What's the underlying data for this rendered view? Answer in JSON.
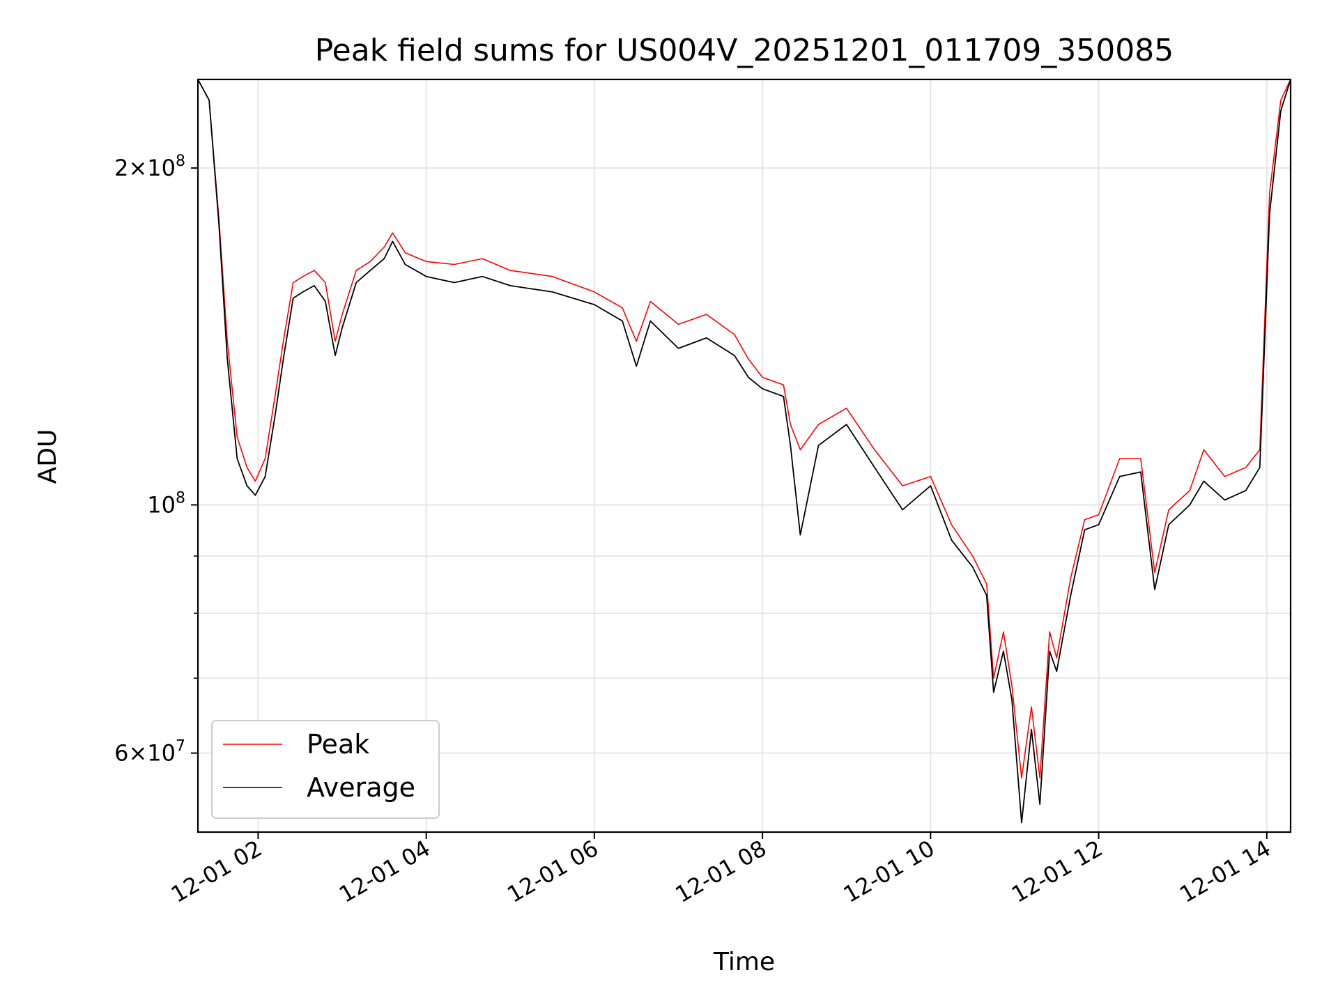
{
  "chart_data": {
    "type": "line",
    "title": "Peak field sums for US004V_20251201_011709_350085",
    "xlabel": "Time",
    "ylabel": "ADU",
    "y_scale": "log",
    "xlim": [
      "2025-12-01 01:17",
      "2025-12-01 14:17"
    ],
    "ylim": [
      51000000,
      240000000
    ],
    "grid": true,
    "legend_position": "lower-left",
    "x_ticks": [
      {
        "label": "12-01 02",
        "value": "2025-12-01 02:00"
      },
      {
        "label": "12-01 04",
        "value": "2025-12-01 04:00"
      },
      {
        "label": "12-01 06",
        "value": "2025-12-01 06:00"
      },
      {
        "label": "12-01 08",
        "value": "2025-12-01 08:00"
      },
      {
        "label": "12-01 10",
        "value": "2025-12-01 10:00"
      },
      {
        "label": "12-01 12",
        "value": "2025-12-01 12:00"
      },
      {
        "label": "12-01 14",
        "value": "2025-12-01 14:00"
      }
    ],
    "y_major_ticks": [
      {
        "label_base": "2×10",
        "label_exp": "8",
        "value": 200000000
      },
      {
        "label_base": "10",
        "label_exp": "8",
        "value": 100000000
      },
      {
        "label_base": "6×10",
        "label_exp": "7",
        "value": 60000000
      }
    ],
    "y_minor_ticks": [
      70000000,
      80000000,
      90000000
    ],
    "x": [
      "2025-12-01 01:17",
      "2025-12-01 01:25",
      "2025-12-01 01:32",
      "2025-12-01 01:38",
      "2025-12-01 01:45",
      "2025-12-01 01:52",
      "2025-12-01 01:58",
      "2025-12-01 02:05",
      "2025-12-01 02:12",
      "2025-12-01 02:18",
      "2025-12-01 02:25",
      "2025-12-01 02:32",
      "2025-12-01 02:40",
      "2025-12-01 02:48",
      "2025-12-01 02:55",
      "2025-12-01 03:00",
      "2025-12-01 03:10",
      "2025-12-01 03:20",
      "2025-12-01 03:30",
      "2025-12-01 03:36",
      "2025-12-01 03:45",
      "2025-12-01 04:00",
      "2025-12-01 04:20",
      "2025-12-01 04:40",
      "2025-12-01 05:00",
      "2025-12-01 05:30",
      "2025-12-01 06:00",
      "2025-12-01 06:20",
      "2025-12-01 06:30",
      "2025-12-01 06:40",
      "2025-12-01 07:00",
      "2025-12-01 07:20",
      "2025-12-01 07:40",
      "2025-12-01 07:50",
      "2025-12-01 08:00",
      "2025-12-01 08:15",
      "2025-12-01 08:20",
      "2025-12-01 08:27",
      "2025-12-01 08:40",
      "2025-12-01 09:00",
      "2025-12-01 09:20",
      "2025-12-01 09:40",
      "2025-12-01 10:00",
      "2025-12-01 10:15",
      "2025-12-01 10:30",
      "2025-12-01 10:40",
      "2025-12-01 10:45",
      "2025-12-01 10:52",
      "2025-12-01 10:58",
      "2025-12-01 11:05",
      "2025-12-01 11:12",
      "2025-12-01 11:18",
      "2025-12-01 11:25",
      "2025-12-01 11:30",
      "2025-12-01 11:40",
      "2025-12-01 11:50",
      "2025-12-01 12:00",
      "2025-12-01 12:15",
      "2025-12-01 12:30",
      "2025-12-01 12:40",
      "2025-12-01 12:50",
      "2025-12-01 13:05",
      "2025-12-01 13:15",
      "2025-12-01 13:30",
      "2025-12-01 13:45",
      "2025-12-01 13:55",
      "2025-12-01 14:02",
      "2025-12-01 14:10",
      "2025-12-01 14:17"
    ],
    "series": [
      {
        "name": "Peak",
        "color": "#ff0000",
        "values": [
          240000000,
          230000000,
          180000000,
          140000000,
          115000000,
          108000000,
          105000000,
          110000000,
          125000000,
          140000000,
          158000000,
          160000000,
          162000000,
          158000000,
          140000000,
          148000000,
          162000000,
          165000000,
          170000000,
          175000000,
          168000000,
          165000000,
          164000000,
          166000000,
          162000000,
          160000000,
          155000000,
          150000000,
          140000000,
          152000000,
          145000000,
          148000000,
          142000000,
          135000000,
          130000000,
          128000000,
          118000000,
          112000000,
          118000000,
          122000000,
          112000000,
          104000000,
          106000000,
          96000000,
          90000000,
          85000000,
          70000000,
          77000000,
          69000000,
          57000000,
          66000000,
          57000000,
          77000000,
          73000000,
          86000000,
          97000000,
          98000000,
          110000000,
          110000000,
          87000000,
          99000000,
          103000000,
          112000000,
          106000000,
          108000000,
          112000000,
          190000000,
          230000000,
          240000000
        ]
      },
      {
        "name": "Average",
        "color": "#000000",
        "values": [
          240000000,
          230000000,
          178000000,
          135000000,
          110000000,
          104000000,
          102000000,
          106000000,
          120000000,
          135000000,
          153000000,
          155000000,
          157000000,
          152000000,
          136000000,
          144000000,
          158000000,
          162000000,
          166000000,
          172000000,
          164000000,
          160000000,
          158000000,
          160000000,
          157000000,
          155000000,
          151000000,
          146000000,
          133000000,
          146000000,
          138000000,
          141000000,
          136000000,
          130000000,
          127000000,
          125000000,
          113000000,
          94000000,
          113000000,
          118000000,
          108000000,
          99000000,
          104000000,
          93000000,
          88000000,
          83000000,
          68000000,
          74000000,
          67000000,
          52000000,
          63000000,
          54000000,
          74000000,
          71000000,
          83000000,
          95000000,
          96000000,
          106000000,
          107000000,
          84000000,
          96000000,
          100000000,
          105000000,
          101000000,
          103000000,
          108000000,
          182000000,
          225000000,
          240000000
        ]
      }
    ]
  }
}
